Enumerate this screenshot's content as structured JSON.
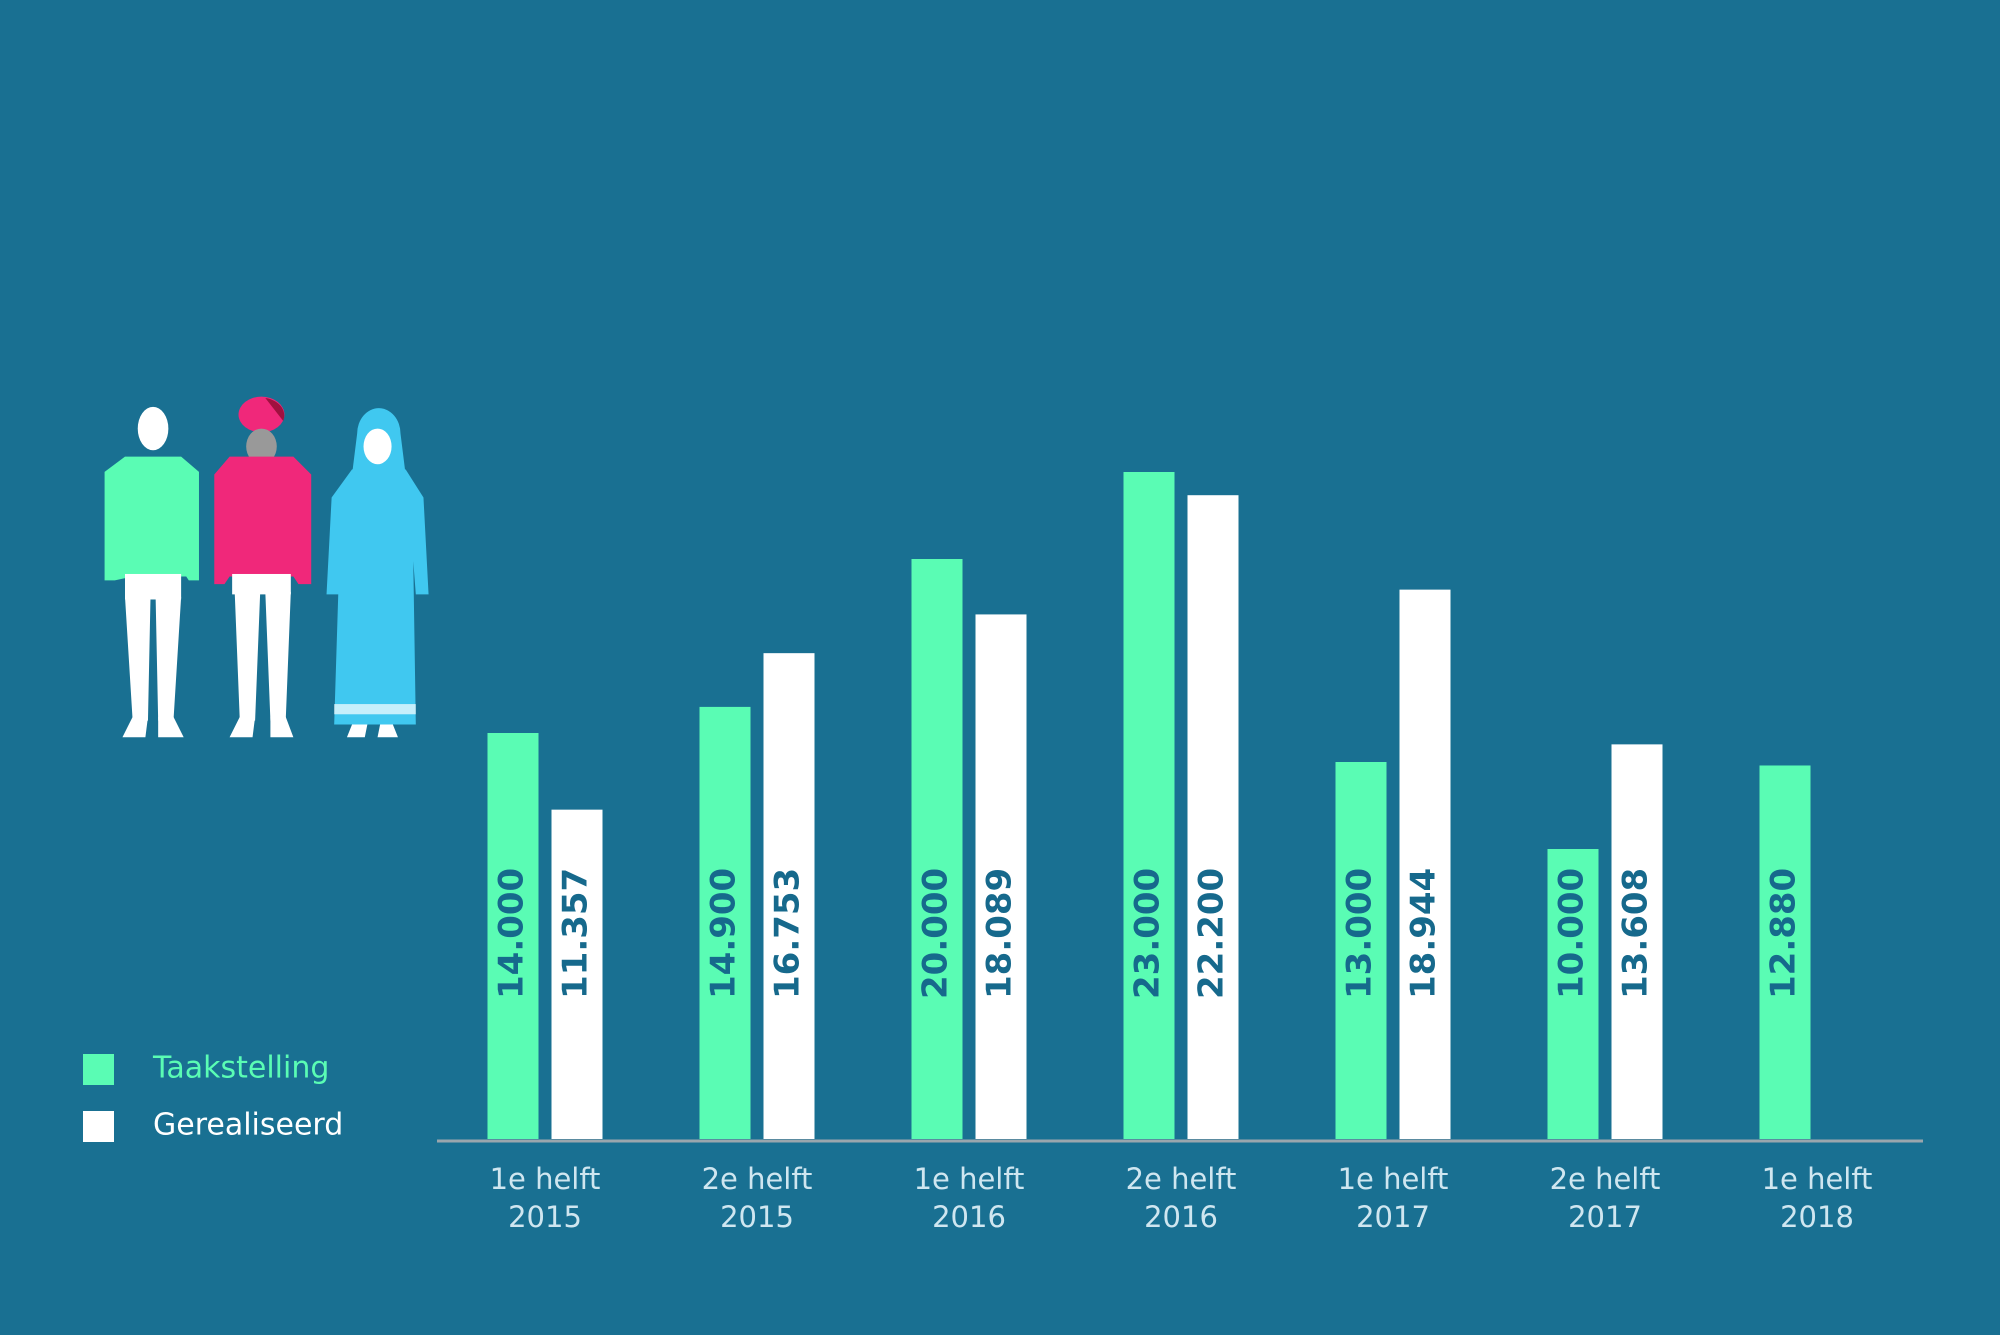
{
  "chart_data": {
    "type": "bar",
    "categories": [
      "1e helft\n2015",
      "2e helft\n2015",
      "1e helft\n2016",
      "2e helft\n2016",
      "1e helft\n2017",
      "2e helft\n2017",
      "1e helft\n2018"
    ],
    "series": [
      {
        "name": "Taakstelling",
        "color": "#5afcb4",
        "values": [
          14000,
          14900,
          20000,
          23000,
          13000,
          10000,
          12880
        ],
        "value_labels": [
          "14.000",
          "14.900",
          "20.000",
          "23.000",
          "13.000",
          "10.000",
          "12.880"
        ]
      },
      {
        "name": "Gerealiseerd",
        "color": "#ffffff",
        "values": [
          11357,
          16753,
          18089,
          22200,
          18944,
          13608,
          null
        ],
        "value_labels": [
          "11.357",
          "16.753",
          "18.089",
          "22.200",
          "18.944",
          "13.608",
          null
        ]
      }
    ],
    "ylim": [
      0,
      23000
    ],
    "legend": "bottom-left"
  }
}
